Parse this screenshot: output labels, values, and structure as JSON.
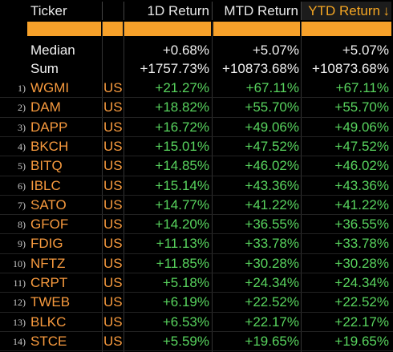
{
  "header": {
    "ticker": "Ticker",
    "d1": "1D Return",
    "mtd": "MTD Return",
    "ytd": "YTD Return",
    "sort_arrow": "↓"
  },
  "stats": [
    {
      "label": "Median",
      "d1": "+0.68%",
      "mtd": "+5.07%",
      "ytd": "+5.07%"
    },
    {
      "label": "Sum",
      "d1": "+1757.73%",
      "mtd": "+10873.68%",
      "ytd": "+10873.68%"
    }
  ],
  "rows": [
    {
      "idx": "1)",
      "ticker": "WGMI",
      "country": "US",
      "d1": "+21.27%",
      "mtd": "+67.11%",
      "ytd": "+67.11%"
    },
    {
      "idx": "2)",
      "ticker": "DAM",
      "country": "US",
      "d1": "+18.82%",
      "mtd": "+55.70%",
      "ytd": "+55.70%"
    },
    {
      "idx": "3)",
      "ticker": "DAPP",
      "country": "US",
      "d1": "+16.72%",
      "mtd": "+49.06%",
      "ytd": "+49.06%"
    },
    {
      "idx": "4)",
      "ticker": "BKCH",
      "country": "US",
      "d1": "+15.01%",
      "mtd": "+47.52%",
      "ytd": "+47.52%"
    },
    {
      "idx": "5)",
      "ticker": "BITQ",
      "country": "US",
      "d1": "+14.85%",
      "mtd": "+46.02%",
      "ytd": "+46.02%"
    },
    {
      "idx": "6)",
      "ticker": "IBLC",
      "country": "US",
      "d1": "+15.14%",
      "mtd": "+43.36%",
      "ytd": "+43.36%"
    },
    {
      "idx": "7)",
      "ticker": "SATO",
      "country": "US",
      "d1": "+14.77%",
      "mtd": "+41.22%",
      "ytd": "+41.22%"
    },
    {
      "idx": "8)",
      "ticker": "GFOF",
      "country": "US",
      "d1": "+14.20%",
      "mtd": "+36.55%",
      "ytd": "+36.55%"
    },
    {
      "idx": "9)",
      "ticker": "FDIG",
      "country": "US",
      "d1": "+11.13%",
      "mtd": "+33.78%",
      "ytd": "+33.78%"
    },
    {
      "idx": "10)",
      "ticker": "NFTZ",
      "country": "US",
      "d1": "+11.85%",
      "mtd": "+30.28%",
      "ytd": "+30.28%"
    },
    {
      "idx": "11)",
      "ticker": "CRPT",
      "country": "US",
      "d1": "+5.18%",
      "mtd": "+24.34%",
      "ytd": "+24.34%"
    },
    {
      "idx": "12)",
      "ticker": "TWEB",
      "country": "US",
      "d1": "+6.19%",
      "mtd": "+22.52%",
      "ytd": "+22.52%"
    },
    {
      "idx": "13)",
      "ticker": "BLKC",
      "country": "US",
      "d1": "+6.53%",
      "mtd": "+22.17%",
      "ytd": "+22.17%"
    },
    {
      "idx": "14)",
      "ticker": "STCE",
      "country": "US",
      "d1": "+5.59%",
      "mtd": "+19.65%",
      "ytd": "+19.65%"
    }
  ],
  "colors": {
    "accent_orange": "#f7a12a",
    "ticker_orange": "#f79a3e",
    "positive_green": "#58d45e",
    "background": "#000000"
  }
}
